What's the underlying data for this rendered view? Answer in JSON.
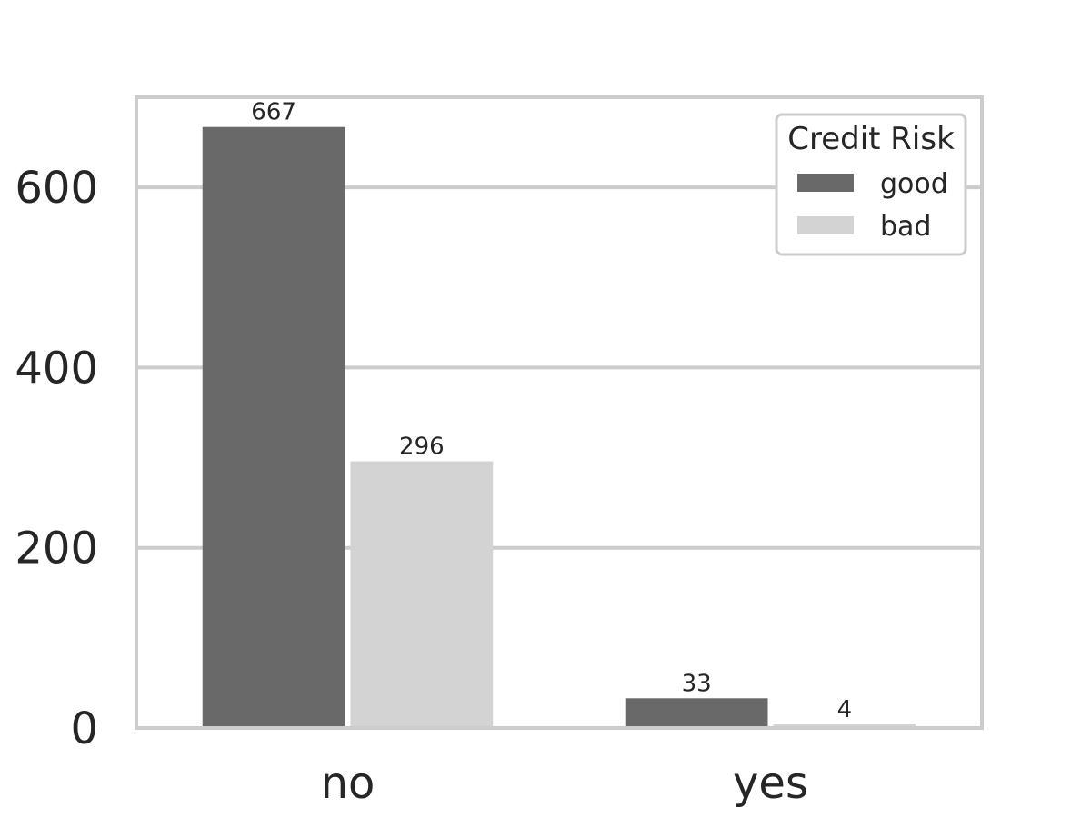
{
  "chart_data": {
    "type": "bar",
    "title": "",
    "xlabel": "",
    "ylabel": "",
    "categories": [
      "no",
      "yes"
    ],
    "series": [
      {
        "name": "good",
        "values": [
          667,
          33
        ],
        "color": "#696969"
      },
      {
        "name": "bad",
        "values": [
          296,
          4
        ],
        "color": "#d3d3d3"
      }
    ],
    "ylim": [
      0,
      700
    ],
    "yticks": [
      0,
      200,
      400,
      600
    ],
    "grid": true,
    "legend": {
      "title": "Credit Risk",
      "placement": "top-right",
      "entries": [
        "good",
        "bad"
      ]
    },
    "colors": {
      "grid": "#cccccc",
      "axes_frame": "#cccccc",
      "text": "#262626"
    }
  }
}
